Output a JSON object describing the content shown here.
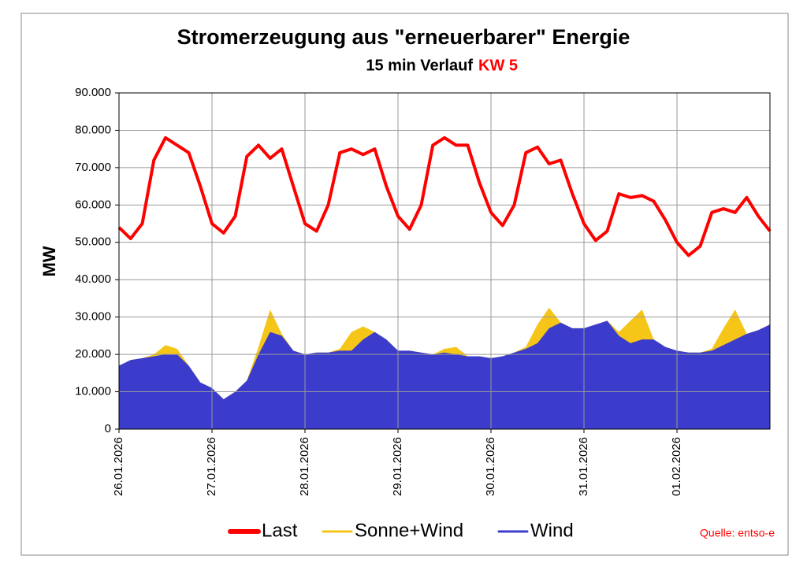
{
  "chart_data": {
    "type": "line",
    "title": "Stromerzeugung aus \"erneuerbarer\" Energie",
    "subtitle": "15 min Verlauf",
    "subtitle_highlight": "KW 5",
    "y_label": "MW",
    "source": "Quelle: entso-e",
    "x": [
      0,
      3,
      6,
      9,
      12,
      15,
      18,
      21,
      24,
      27,
      30,
      33,
      36,
      39,
      42,
      45,
      48,
      51,
      54,
      57,
      60,
      63,
      66,
      69,
      72,
      75,
      78,
      81,
      84,
      87,
      90,
      93,
      96,
      99,
      102,
      105,
      108,
      111,
      114,
      117,
      120,
      123,
      126,
      129,
      132,
      135,
      138,
      141,
      144,
      147,
      150,
      153,
      156,
      159,
      162,
      165,
      168
    ],
    "xlim": [
      0,
      168
    ],
    "xticks": [
      {
        "value": 0,
        "label": "26.01.2026"
      },
      {
        "value": 24,
        "label": "27.01.2026"
      },
      {
        "value": 48,
        "label": "28.01.2026"
      },
      {
        "value": 72,
        "label": "29.01.2026"
      },
      {
        "value": 96,
        "label": "30.01.2026"
      },
      {
        "value": 120,
        "label": "31.01.2026"
      },
      {
        "value": 144,
        "label": "01.02.2026"
      }
    ],
    "ylim": [
      0,
      90000
    ],
    "yticks": [
      0,
      {
        "value": 10000,
        "label": "10.000"
      },
      {
        "value": 20000,
        "label": "20.000"
      },
      {
        "value": 30000,
        "label": "30.000"
      },
      {
        "value": 40000,
        "label": "40.000"
      },
      {
        "value": 50000,
        "label": "50.000"
      },
      {
        "value": 60000,
        "label": "60.000"
      },
      {
        "value": 70000,
        "label": "70.000"
      },
      {
        "value": 80000,
        "label": "80.000"
      },
      {
        "value": 90000,
        "label": "90.000"
      }
    ],
    "grid": true,
    "series": [
      {
        "name": "Last",
        "color": "#ff0000",
        "kind": "line",
        "values": [
          54000,
          51000,
          55000,
          72000,
          78000,
          76000,
          74000,
          65000,
          55000,
          52500,
          57000,
          73000,
          76000,
          72500,
          75000,
          65000,
          55000,
          53000,
          60000,
          74000,
          75000,
          73500,
          75000,
          65000,
          57000,
          53500,
          60000,
          76000,
          78000,
          76000,
          76000,
          66000,
          58000,
          54500,
          60000,
          74000,
          75500,
          71000,
          72000,
          63000,
          55000,
          50500,
          53000,
          63000,
          62000,
          62500,
          61000,
          56000,
          50000,
          46500,
          49000,
          58000,
          59000,
          58000,
          62000,
          57000,
          53000
        ]
      },
      {
        "name": "Sonne+Wind",
        "color": "#f5c518",
        "kind": "area",
        "values": [
          17000,
          18500,
          19000,
          20000,
          22500,
          21500,
          17000,
          12500,
          11000,
          8000,
          10000,
          13000,
          22000,
          32000,
          25500,
          21000,
          20000,
          20500,
          20500,
          21500,
          26000,
          27500,
          26000,
          24000,
          21000,
          21000,
          20500,
          20000,
          21500,
          22000,
          19500,
          19500,
          19000,
          19500,
          20500,
          22000,
          28000,
          32500,
          28500,
          27000,
          27000,
          28000,
          29000,
          26000,
          29000,
          32000,
          24000,
          22000,
          21000,
          20500,
          20500,
          21500,
          27000,
          32000,
          25500,
          26500,
          28000
        ]
      },
      {
        "name": "Wind",
        "color": "#3c3ccc",
        "kind": "area",
        "values": [
          17000,
          18500,
          19000,
          19500,
          20000,
          20000,
          17000,
          12500,
          11000,
          8000,
          10000,
          13000,
          20000,
          26000,
          25000,
          21000,
          20000,
          20500,
          20500,
          21000,
          21000,
          24000,
          26000,
          24000,
          21000,
          21000,
          20500,
          20000,
          20500,
          20000,
          19500,
          19500,
          19000,
          19500,
          20500,
          21500,
          23000,
          27000,
          28500,
          27000,
          27000,
          28000,
          29000,
          25000,
          23000,
          24000,
          24000,
          22000,
          21000,
          20500,
          20500,
          21000,
          22500,
          24000,
          25500,
          26500,
          28000
        ]
      }
    ]
  }
}
